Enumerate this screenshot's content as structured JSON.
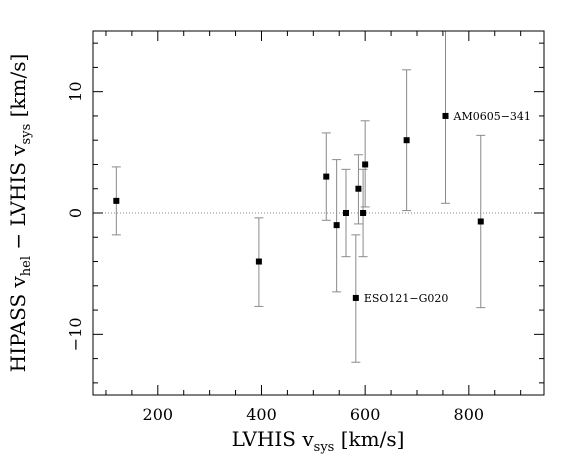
{
  "chart_data": {
    "type": "scatter",
    "xlabel": {
      "main": "LVHIS v",
      "sub": "sys",
      "unit": " [km/s]"
    },
    "ylabel": {
      "main": "HIPASS v",
      "sub1": "hel",
      "mid": " − LVHIS v",
      "sub2": "sys",
      "unit": " [km/s]"
    },
    "xlim": [
      75,
      945
    ],
    "ylim": [
      -15,
      15
    ],
    "xticks": [
      200,
      400,
      600,
      800
    ],
    "yticks": [
      -10,
      0,
      10
    ],
    "reference_line_y": 0,
    "points": [
      {
        "x": 120,
        "y": 1.0,
        "err_low": -1.8,
        "err_high": 3.8
      },
      {
        "x": 395,
        "y": -4.0,
        "err_low": -7.7,
        "err_high": -0.4
      },
      {
        "x": 525,
        "y": 3.0,
        "err_low": -0.6,
        "err_high": 6.6
      },
      {
        "x": 545,
        "y": -1.0,
        "err_low": -6.5,
        "err_high": 4.4
      },
      {
        "x": 563,
        "y": 0.0,
        "err_low": -3.6,
        "err_high": 3.6
      },
      {
        "x": 582,
        "y": -7.0,
        "err_low": -12.3,
        "err_high": -1.8
      },
      {
        "x": 587,
        "y": 2.0,
        "err_low": -0.9,
        "err_high": 4.8
      },
      {
        "x": 596,
        "y": 0.0,
        "err_low": -3.6,
        "err_high": 3.6
      },
      {
        "x": 600,
        "y": 4.0,
        "err_low": 0.5,
        "err_high": 7.6
      },
      {
        "x": 680,
        "y": 6.0,
        "err_low": 0.2,
        "err_high": 11.8
      },
      {
        "x": 755,
        "y": 8.0,
        "err_low": 0.8,
        "err_high": 15.0
      },
      {
        "x": 823,
        "y": -0.7,
        "err_low": -7.8,
        "err_high": 6.4
      }
    ],
    "annotations": [
      {
        "text": "AM0605−341",
        "x": 755,
        "y": 8.0
      },
      {
        "text": "ESO121−G020",
        "x": 582,
        "y": -7.0
      }
    ],
    "colors": {
      "points": "#000000",
      "errorbars": "#8a8a8a",
      "reference_line": "#8a8a8a"
    }
  }
}
